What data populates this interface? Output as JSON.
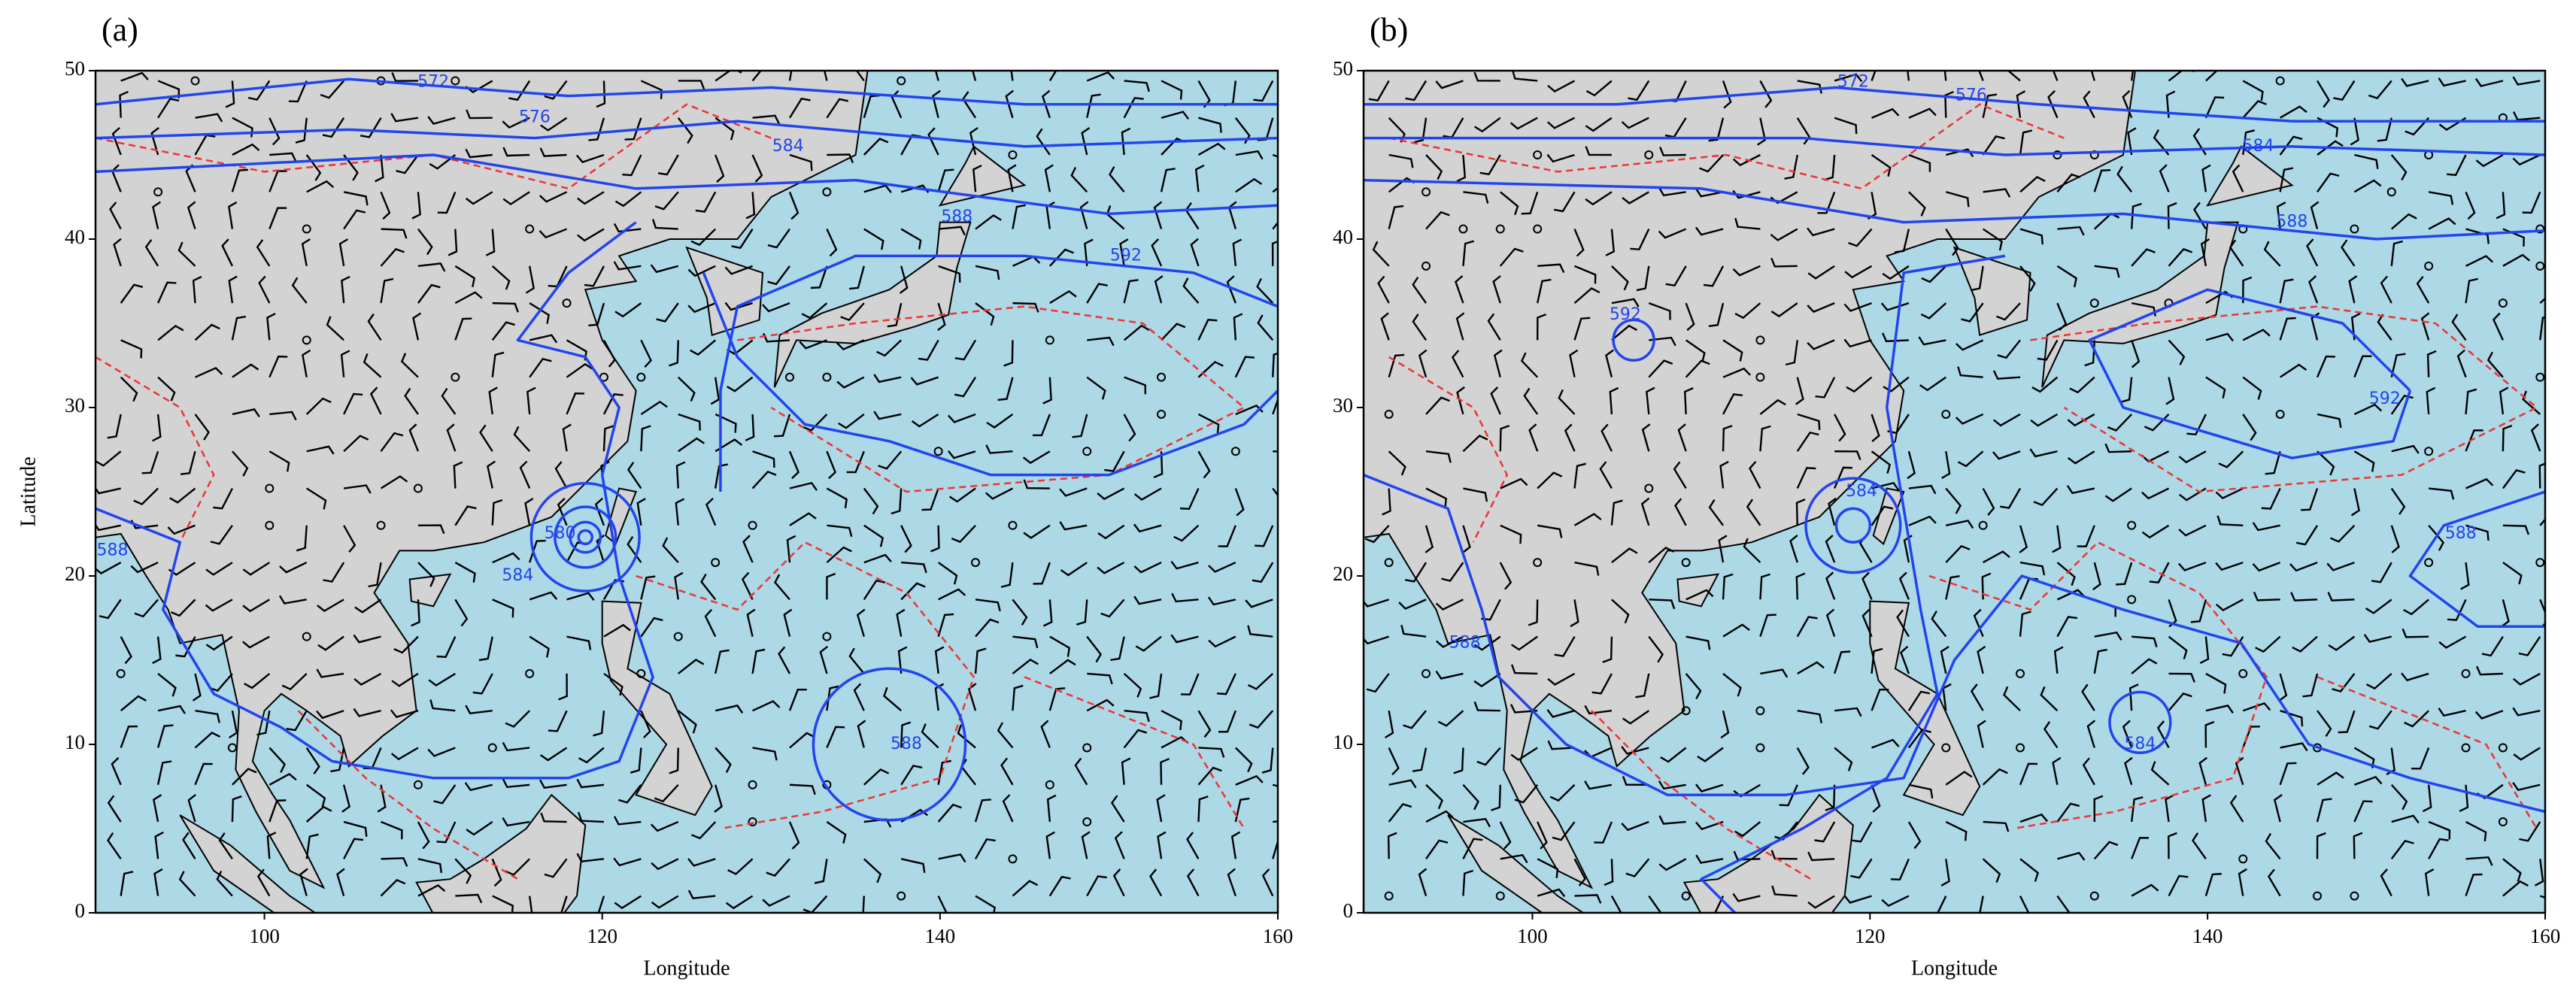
{
  "panels": [
    {
      "label": "(a)",
      "xlabel": "Longitude",
      "ylabel": "Latitude",
      "xlim": [
        90,
        160
      ],
      "ylim": [
        0,
        50
      ],
      "xticks": [
        100,
        120,
        140,
        160
      ],
      "yticks": [
        0,
        10,
        20,
        30,
        40,
        50
      ],
      "contour_labels": [
        {
          "text": "572",
          "lon": 110,
          "lat": 49.3
        },
        {
          "text": "576",
          "lon": 116,
          "lat": 47.2
        },
        {
          "text": "584",
          "lon": 131,
          "lat": 45.5
        },
        {
          "text": "588",
          "lon": 141,
          "lat": 41.3
        },
        {
          "text": "592",
          "lon": 151,
          "lat": 39
        },
        {
          "text": "588",
          "lon": 91,
          "lat": 21.5
        },
        {
          "text": "584",
          "lon": 115,
          "lat": 20
        },
        {
          "text": "580",
          "lon": 117.5,
          "lat": 22.5
        },
        {
          "text": "588",
          "lon": 138,
          "lat": 10
        }
      ]
    },
    {
      "label": "(b)",
      "xlabel": "Longitude",
      "xlim": [
        90,
        160
      ],
      "ylim": [
        0,
        50
      ],
      "xticks": [
        100,
        120,
        140,
        160
      ],
      "yticks": [
        0,
        10,
        20,
        30,
        40,
        50
      ],
      "contour_labels": [
        {
          "text": "572",
          "lon": 119,
          "lat": 49.3
        },
        {
          "text": "576",
          "lon": 126,
          "lat": 48.5
        },
        {
          "text": "584",
          "lon": 143,
          "lat": 45.5
        },
        {
          "text": "588",
          "lon": 145,
          "lat": 41
        },
        {
          "text": "592",
          "lon": 150.5,
          "lat": 30.5
        },
        {
          "text": "588",
          "lon": 96,
          "lat": 16
        },
        {
          "text": "584",
          "lon": 119.5,
          "lat": 25
        },
        {
          "text": "588",
          "lon": 155,
          "lat": 22.5
        },
        {
          "text": "584",
          "lon": 136,
          "lat": 10
        },
        {
          "text": "592",
          "lon": 105.5,
          "lat": 35.5
        }
      ]
    }
  ]
}
